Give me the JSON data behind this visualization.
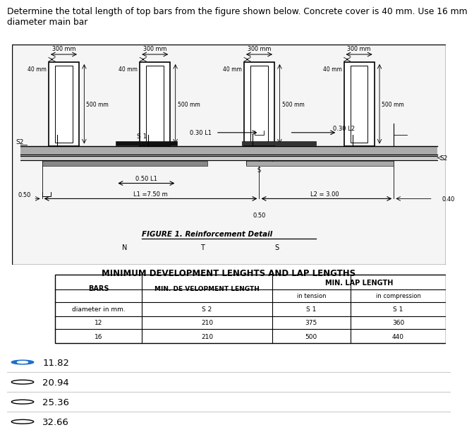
{
  "title_text": "Determine the total length of top bars from the figure shown below. Concrete cover is 40 mm. Use 16 mm\ndiameter main bar",
  "fig_title": "FIGURE 1. Reinforcement Detail",
  "table_title": "MINIMUM DEVELOPMENT LENGHTS AND LAP LENGTHS",
  "table_rows": [
    [
      "diameter in mm.",
      "S 2",
      "S 1",
      "S 1"
    ],
    [
      "12",
      "210",
      "375",
      "360"
    ],
    [
      "16",
      "210",
      "500",
      "440"
    ]
  ],
  "options": [
    {
      "label": "11.82",
      "selected": true
    },
    {
      "label": "20.94",
      "selected": false
    },
    {
      "label": "25.36",
      "selected": false
    },
    {
      "label": "32.66",
      "selected": false
    }
  ],
  "bg_color": "#ffffff",
  "diagram_bg": "#f5f5f5",
  "col_label": "300 mm",
  "cover_label": "40 mm",
  "height_label": "500 mm"
}
